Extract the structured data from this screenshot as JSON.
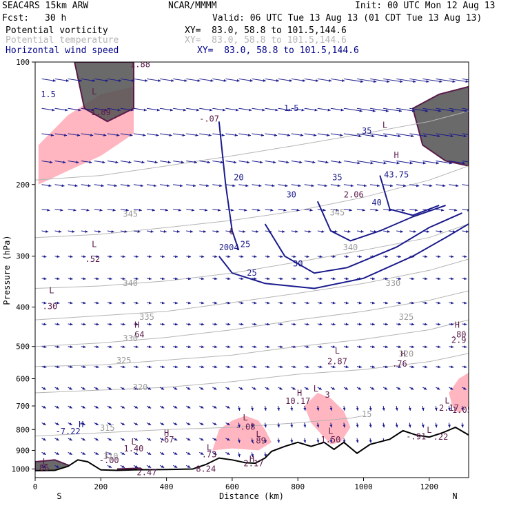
{
  "header": {
    "model": "SEAC4RS 15km ARW",
    "org": "NCAR/MMMM",
    "init": "Init: 00 UTC Mon 12 Aug 13",
    "fcst_label": "Fcst:",
    "fcst_value": "30 h",
    "valid": "Valid: 06 UTC Tue 13 Aug 13 (01 CDT Tue 13 Aug 13)"
  },
  "legend": [
    {
      "name": "Potential vorticity",
      "xy": "XY=  83.0, 58.8 to 101.5,144.6",
      "color": "#000000"
    },
    {
      "name": "Potential temperature",
      "xy": "XY=  83.0, 58.8 to 101.5,144.6",
      "color": "#b4b4b4"
    },
    {
      "name": "Horizontal wind speed",
      "xy": "XY=  83.0, 58.8 to 101.5,144.6",
      "color": "#00008b"
    }
  ],
  "colors": {
    "pv_fill_light": "#ffb6c1",
    "pv_fill_dark": "#505050",
    "pv_contour": "#5a1a4a",
    "theta": "#b4b4b4",
    "wind": "#1a1a8c",
    "terrain": "#000000"
  },
  "chart_data": {
    "type": "cross-section",
    "xlabel": "Distance (km)",
    "ylabel": "Pressure (hPa)",
    "xlim": [
      0,
      1320
    ],
    "ylim": [
      1050,
      100
    ],
    "y_scale": "log",
    "xticks": [
      0,
      200,
      400,
      600,
      800,
      1000,
      1200
    ],
    "yticks": [
      100,
      200,
      300,
      400,
      500,
      600,
      700,
      800,
      900,
      1000
    ],
    "end_labels": {
      "left": "S",
      "right": "N"
    },
    "terrain": [
      [
        0,
        1010
      ],
      [
        60,
        1008
      ],
      [
        100,
        985
      ],
      [
        130,
        950
      ],
      [
        160,
        960
      ],
      [
        200,
        1005
      ],
      [
        250,
        1008
      ],
      [
        300,
        1005
      ],
      [
        400,
        1003
      ],
      [
        480,
        1000
      ],
      [
        520,
        975
      ],
      [
        560,
        940
      ],
      [
        600,
        950
      ],
      [
        640,
        965
      ],
      [
        670,
        968
      ],
      [
        700,
        940
      ],
      [
        720,
        905
      ],
      [
        760,
        880
      ],
      [
        800,
        860
      ],
      [
        840,
        880
      ],
      [
        880,
        860
      ],
      [
        910,
        895
      ],
      [
        940,
        860
      ],
      [
        980,
        915
      ],
      [
        1020,
        870
      ],
      [
        1080,
        845
      ],
      [
        1120,
        805
      ],
      [
        1160,
        825
      ],
      [
        1200,
        835
      ],
      [
        1240,
        815
      ],
      [
        1280,
        790
      ],
      [
        1320,
        825
      ]
    ],
    "theta_contours": [
      {
        "label": "315",
        "points": [
          [
            0,
            830
          ],
          [
            200,
            815
          ],
          [
            400,
            800
          ],
          [
            600,
            790
          ],
          [
            800,
            770
          ],
          [
            960,
            750
          ],
          [
            1000,
            740
          ]
        ]
      },
      {
        "label": "320",
        "points": [
          [
            0,
            650
          ],
          [
            200,
            640
          ],
          [
            400,
            630
          ],
          [
            600,
            610
          ],
          [
            800,
            585
          ],
          [
            1000,
            570
          ],
          [
            1200,
            545
          ],
          [
            1320,
            520
          ]
        ]
      },
      {
        "label": "325",
        "points": [
          [
            0,
            560
          ],
          [
            200,
            555
          ],
          [
            400,
            540
          ],
          [
            600,
            525
          ],
          [
            800,
            500
          ],
          [
            1000,
            480
          ],
          [
            1200,
            455
          ],
          [
            1320,
            430
          ]
        ]
      },
      {
        "label": "330",
        "points": [
          [
            0,
            500
          ],
          [
            200,
            490
          ],
          [
            400,
            475
          ],
          [
            600,
            455
          ],
          [
            800,
            430
          ],
          [
            1000,
            410
          ],
          [
            1200,
            385
          ],
          [
            1320,
            365
          ]
        ]
      },
      {
        "label": "335",
        "points": [
          [
            0,
            430
          ],
          [
            200,
            420
          ],
          [
            400,
            410
          ],
          [
            600,
            390
          ],
          [
            800,
            370
          ],
          [
            1000,
            350
          ],
          [
            1200,
            325
          ],
          [
            1320,
            305
          ]
        ]
      },
      {
        "label": "340",
        "points": [
          [
            0,
            360
          ],
          [
            200,
            355
          ],
          [
            400,
            345
          ],
          [
            600,
            330
          ],
          [
            800,
            310
          ],
          [
            1000,
            290
          ],
          [
            1200,
            270
          ],
          [
            1320,
            250
          ]
        ]
      },
      {
        "label": "345",
        "points": [
          [
            0,
            270
          ],
          [
            200,
            265
          ],
          [
            400,
            255
          ],
          [
            600,
            245
          ],
          [
            800,
            232
          ],
          [
            1000,
            215
          ],
          [
            1200,
            195
          ],
          [
            1320,
            180
          ]
        ]
      },
      {
        "label": "350",
        "points": [
          [
            0,
            195
          ],
          [
            200,
            190
          ],
          [
            400,
            180
          ],
          [
            600,
            170
          ],
          [
            800,
            160
          ],
          [
            1000,
            150
          ],
          [
            1200,
            140
          ],
          [
            1320,
            132
          ]
        ]
      }
    ],
    "wind_contours": [
      {
        "label": "25",
        "points": [
          [
            560,
            300
          ],
          [
            600,
            330
          ],
          [
            700,
            350
          ],
          [
            850,
            360
          ],
          [
            1000,
            340
          ],
          [
            1150,
            300
          ],
          [
            1250,
            270
          ],
          [
            1320,
            250
          ]
        ]
      },
      {
        "label": "30",
        "points": [
          [
            700,
            250
          ],
          [
            760,
            300
          ],
          [
            850,
            330
          ],
          [
            950,
            320
          ],
          [
            1100,
            285
          ],
          [
            1200,
            255
          ],
          [
            1300,
            235
          ]
        ]
      },
      {
        "label": "35",
        "points": [
          [
            860,
            220
          ],
          [
            900,
            260
          ],
          [
            960,
            275
          ],
          [
            1050,
            260
          ],
          [
            1150,
            240
          ],
          [
            1250,
            225
          ]
        ]
      },
      {
        "label": "40",
        "points": [
          [
            1050,
            190
          ],
          [
            1080,
            230
          ],
          [
            1150,
            238
          ],
          [
            1230,
            225
          ]
        ]
      },
      {
        "label": "20",
        "points": [
          [
            560,
            140
          ],
          [
            580,
            200
          ],
          [
            600,
            260
          ],
          [
            620,
            290
          ]
        ]
      }
    ],
    "pv_fill_light": [
      [
        [
          10,
          160
        ],
        [
          100,
          135
        ],
        [
          200,
          120
        ],
        [
          300,
          115
        ],
        [
          300,
          150
        ],
        [
          200,
          170
        ],
        [
          100,
          185
        ],
        [
          10,
          200
        ]
      ],
      [
        [
          540,
          900
        ],
        [
          560,
          800
        ],
        [
          600,
          760
        ],
        [
          640,
          740
        ],
        [
          680,
          760
        ],
        [
          700,
          800
        ],
        [
          720,
          860
        ],
        [
          680,
          900
        ],
        [
          600,
          890
        ]
      ],
      [
        [
          820,
          700
        ],
        [
          860,
          650
        ],
        [
          900,
          670
        ],
        [
          940,
          720
        ],
        [
          960,
          790
        ],
        [
          930,
          860
        ],
        [
          900,
          870
        ],
        [
          870,
          820
        ],
        [
          840,
          770
        ]
      ],
      [
        [
          1260,
          650
        ],
        [
          1290,
          600
        ],
        [
          1320,
          580
        ],
        [
          1320,
          700
        ],
        [
          1290,
          730
        ],
        [
          1270,
          700
        ]
      ]
    ],
    "pv_fill_dark": [
      [
        [
          120,
          100
        ],
        [
          300,
          100
        ],
        [
          300,
          130
        ],
        [
          220,
          140
        ],
        [
          150,
          130
        ]
      ],
      [
        [
          1150,
          130
        ],
        [
          1230,
          120
        ],
        [
          1320,
          115
        ],
        [
          1320,
          180
        ],
        [
          1250,
          175
        ],
        [
          1180,
          160
        ]
      ],
      [
        [
          0,
          960
        ],
        [
          60,
          950
        ],
        [
          110,
          985
        ],
        [
          80,
          1008
        ],
        [
          0,
          1010
        ]
      ],
      [
        [
          250,
          1000
        ],
        [
          320,
          995
        ],
        [
          330,
          1008
        ],
        [
          260,
          1008
        ]
      ]
    ],
    "annotations": [
      {
        "t": "1.5",
        "x": 40,
        "p": 122,
        "c": "wind"
      },
      {
        "t": "L",
        "x": 180,
        "p": 120,
        "c": "pv"
      },
      {
        "t": "1.89",
        "x": 200,
        "p": 135,
        "c": "pv"
      },
      {
        "t": "1.88",
        "x": 320,
        "p": 103,
        "c": "pv"
      },
      {
        "t": "-.07",
        "x": 530,
        "p": 140,
        "c": "pv"
      },
      {
        "t": "1.5",
        "x": 780,
        "p": 132,
        "c": "wind"
      },
      {
        "t": "35",
        "x": 1010,
        "p": 150,
        "c": "wind"
      },
      {
        "t": "35",
        "x": 920,
        "p": 195,
        "c": "wind"
      },
      {
        "t": "L",
        "x": 1065,
        "p": 145,
        "c": "pv"
      },
      {
        "t": "H",
        "x": 1100,
        "p": 172,
        "c": "pv"
      },
      {
        "t": "43.75",
        "x": 1100,
        "p": 192,
        "c": "wind"
      },
      {
        "t": "2.06",
        "x": 970,
        "p": 215,
        "c": "pv"
      },
      {
        "t": "20",
        "x": 620,
        "p": 195,
        "c": "wind"
      },
      {
        "t": "30",
        "x": 780,
        "p": 215,
        "c": "wind"
      },
      {
        "t": "40",
        "x": 1040,
        "p": 225,
        "c": "wind"
      },
      {
        "t": "L",
        "x": 600,
        "p": 265,
        "c": "pv"
      },
      {
        "t": "2004",
        "x": 590,
        "p": 290,
        "c": "wind"
      },
      {
        "t": "25",
        "x": 640,
        "p": 285,
        "c": "wind"
      },
      {
        "t": "30",
        "x": 800,
        "p": 318,
        "c": "wind"
      },
      {
        "t": "25",
        "x": 660,
        "p": 335,
        "c": "wind"
      },
      {
        "t": "L",
        "x": 180,
        "p": 285,
        "c": "pv"
      },
      {
        "t": ".52",
        "x": 175,
        "p": 310,
        "c": "pv"
      },
      {
        "t": "L",
        "x": 50,
        "p": 370,
        "c": "pv"
      },
      {
        "t": ".30",
        "x": 45,
        "p": 405,
        "c": "pv"
      },
      {
        "t": "H",
        "x": 310,
        "p": 450,
        "c": "pv"
      },
      {
        "t": ".64",
        "x": 310,
        "p": 475,
        "c": "pv"
      },
      {
        "t": "L",
        "x": 920,
        "p": 520,
        "c": "pv"
      },
      {
        "t": "2.87",
        "x": 920,
        "p": 553,
        "c": "pv"
      },
      {
        "t": "H",
        "x": 1120,
        "p": 530,
        "c": "pv"
      },
      {
        "t": ".76",
        "x": 1110,
        "p": 560,
        "c": "pv"
      },
      {
        "t": "H",
        "x": 1285,
        "p": 450,
        "c": "pv"
      },
      {
        "t": ".80",
        "x": 1290,
        "p": 475,
        "c": "pv"
      },
      {
        "t": "2.9",
        "x": 1290,
        "p": 490,
        "c": "pv"
      },
      {
        "t": "L",
        "x": 855,
        "p": 645,
        "c": "pv"
      },
      {
        "t": "H",
        "x": 805,
        "p": 662,
        "c": "pv"
      },
      {
        "t": "3",
        "x": 890,
        "p": 668,
        "c": "pv"
      },
      {
        "t": "10.17",
        "x": 800,
        "p": 692,
        "c": "pv"
      },
      {
        "t": "L",
        "x": 1255,
        "p": 690,
        "c": "pv"
      },
      {
        "t": "2.17",
        "x": 1260,
        "p": 720,
        "c": "pv"
      },
      {
        "t": "1.05",
        "x": 1300,
        "p": 728,
        "c": "pv"
      },
      {
        "t": "L",
        "x": 640,
        "p": 760,
        "c": "pv"
      },
      {
        "t": "-.08",
        "x": 640,
        "p": 800,
        "c": "pv"
      },
      {
        "t": "H",
        "x": 140,
        "p": 790,
        "c": "wind"
      },
      {
        "t": "-7.22",
        "x": 100,
        "p": 822,
        "c": "wind"
      },
      {
        "t": "L",
        "x": 900,
        "p": 820,
        "c": "pv"
      },
      {
        "t": "1.50",
        "x": 900,
        "p": 860,
        "c": "pv"
      },
      {
        "t": "L",
        "x": 680,
        "p": 835,
        "c": "pv"
      },
      {
        "t": ".89",
        "x": 680,
        "p": 865,
        "c": "pv"
      },
      {
        "t": "H",
        "x": 400,
        "p": 830,
        "c": "pv"
      },
      {
        "t": ".67",
        "x": 400,
        "p": 860,
        "c": "pv"
      },
      {
        "t": "L",
        "x": 1200,
        "p": 815,
        "c": "pv"
      },
      {
        "t": "-.91",
        "x": 1160,
        "p": 845,
        "c": "pv"
      },
      {
        "t": ".22",
        "x": 1235,
        "p": 848,
        "c": "pv"
      },
      {
        "t": "L",
        "x": 300,
        "p": 870,
        "c": "pv"
      },
      {
        "t": "1.40",
        "x": 300,
        "p": 905,
        "c": "pv"
      },
      {
        "t": "L",
        "x": 530,
        "p": 900,
        "c": "pv"
      },
      {
        "t": ".73",
        "x": 530,
        "p": 935,
        "c": "pv"
      },
      {
        "t": "L",
        "x": 220,
        "p": 940,
        "c": "pv"
      },
      {
        "t": "-.00",
        "x": 225,
        "p": 968,
        "c": "pv"
      },
      {
        "t": "H",
        "x": 660,
        "p": 960,
        "c": "pv"
      },
      {
        "t": "2.17",
        "x": 665,
        "p": 985,
        "c": "pv"
      },
      {
        "t": "8.24",
        "x": 520,
        "p": 1015,
        "c": "pv"
      },
      {
        "t": "2.47",
        "x": 340,
        "p": 1035,
        "c": "pv"
      },
      {
        "t": "L",
        "x": 30,
        "p": 975,
        "c": "pv"
      },
      {
        "t": ".86",
        "x": 20,
        "p": 1010,
        "c": "pv"
      },
      {
        "t": "345",
        "x": 290,
        "p": 240,
        "c": "theta"
      },
      {
        "t": "340",
        "x": 290,
        "p": 355,
        "c": "theta"
      },
      {
        "t": "335",
        "x": 340,
        "p": 430,
        "c": "theta"
      },
      {
        "t": "330",
        "x": 290,
        "p": 485,
        "c": "theta"
      },
      {
        "t": "325",
        "x": 270,
        "p": 550,
        "c": "theta"
      },
      {
        "t": "320",
        "x": 320,
        "p": 640,
        "c": "theta"
      },
      {
        "t": "315",
        "x": 220,
        "p": 805,
        "c": "theta"
      },
      {
        "t": "310",
        "x": 230,
        "p": 945,
        "c": "theta"
      },
      {
        "t": "340",
        "x": 960,
        "p": 290,
        "c": "theta"
      },
      {
        "t": "345",
        "x": 920,
        "p": 238,
        "c": "theta"
      },
      {
        "t": "330",
        "x": 1090,
        "p": 355,
        "c": "theta"
      },
      {
        "t": "325",
        "x": 1130,
        "p": 430,
        "c": "theta"
      },
      {
        "t": "320",
        "x": 1130,
        "p": 530,
        "c": "theta"
      },
      {
        "t": "15",
        "x": 1010,
        "p": 745,
        "c": "theta"
      }
    ]
  }
}
